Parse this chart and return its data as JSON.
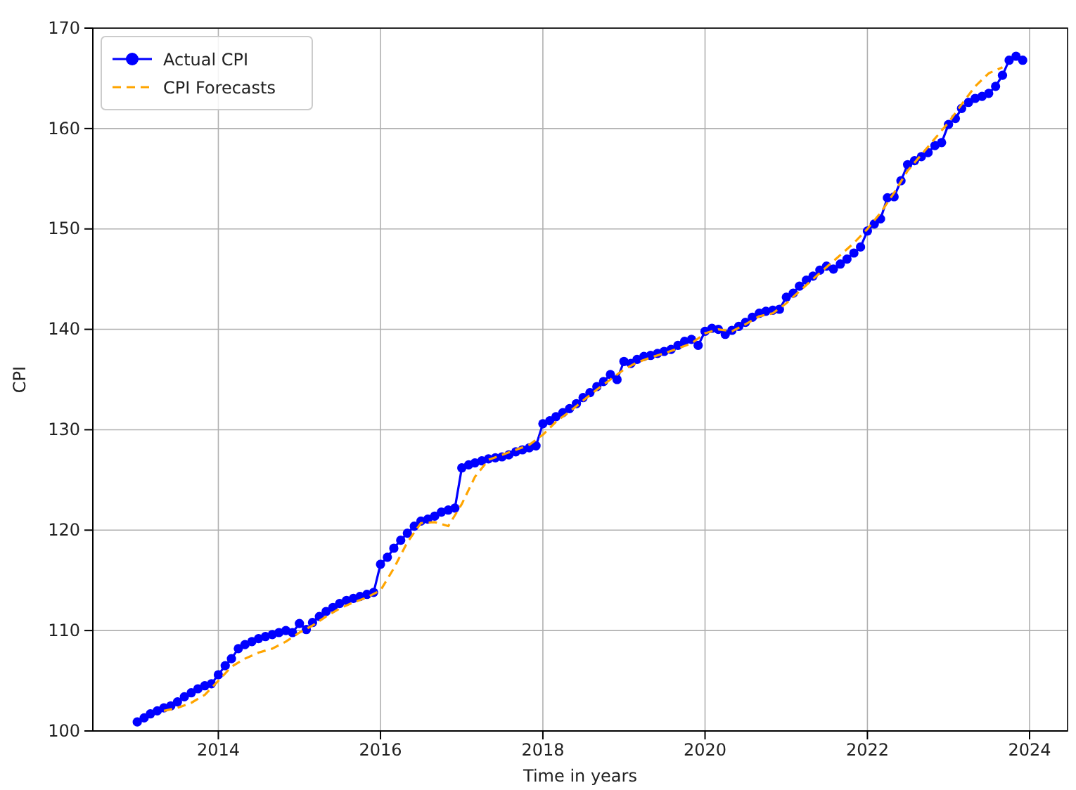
{
  "chart_data": {
    "type": "line",
    "xlabel": "Time in years",
    "ylabel": "CPI",
    "xlim": [
      "2012-06-15",
      "2024-06-20"
    ],
    "ylim": [
      100,
      170
    ],
    "xticks": [
      "2014",
      "2016",
      "2018",
      "2020",
      "2022",
      "2024"
    ],
    "yticks": [
      100,
      110,
      120,
      130,
      140,
      150,
      160,
      170
    ],
    "grid": true,
    "legend": "top left",
    "x": [
      "2013-01",
      "2013-02",
      "2013-03",
      "2013-04",
      "2013-05",
      "2013-06",
      "2013-07",
      "2013-08",
      "2013-09",
      "2013-10",
      "2013-11",
      "2013-12",
      "2014-01",
      "2014-02",
      "2014-03",
      "2014-04",
      "2014-05",
      "2014-06",
      "2014-07",
      "2014-08",
      "2014-09",
      "2014-10",
      "2014-11",
      "2014-12",
      "2015-01",
      "2015-02",
      "2015-03",
      "2015-04",
      "2015-05",
      "2015-06",
      "2015-07",
      "2015-08",
      "2015-09",
      "2015-10",
      "2015-11",
      "2015-12",
      "2016-01",
      "2016-02",
      "2016-03",
      "2016-04",
      "2016-05",
      "2016-06",
      "2016-07",
      "2016-08",
      "2016-09",
      "2016-10",
      "2016-11",
      "2016-12",
      "2017-01",
      "2017-02",
      "2017-03",
      "2017-04",
      "2017-05",
      "2017-06",
      "2017-07",
      "2017-08",
      "2017-09",
      "2017-10",
      "2017-11",
      "2017-12",
      "2018-01",
      "2018-02",
      "2018-03",
      "2018-04",
      "2018-05",
      "2018-06",
      "2018-07",
      "2018-08",
      "2018-09",
      "2018-10",
      "2018-11",
      "2018-12",
      "2019-01",
      "2019-02",
      "2019-03",
      "2019-04",
      "2019-05",
      "2019-06",
      "2019-07",
      "2019-08",
      "2019-09",
      "2019-10",
      "2019-11",
      "2019-12",
      "2020-01",
      "2020-02",
      "2020-03",
      "2020-04",
      "2020-05",
      "2020-06",
      "2020-07",
      "2020-08",
      "2020-09",
      "2020-10",
      "2020-11",
      "2020-12",
      "2021-01",
      "2021-02",
      "2021-03",
      "2021-04",
      "2021-05",
      "2021-06",
      "2021-07",
      "2021-08",
      "2021-09",
      "2021-10",
      "2021-11",
      "2021-12",
      "2022-01",
      "2022-02",
      "2022-03",
      "2022-04",
      "2022-05",
      "2022-06",
      "2022-07",
      "2022-08",
      "2022-09",
      "2022-10",
      "2022-11",
      "2022-12",
      "2023-01",
      "2023-02",
      "2023-03",
      "2023-04",
      "2023-05",
      "2023-06",
      "2023-07",
      "2023-08",
      "2023-09",
      "2023-10",
      "2023-11",
      "2023-12"
    ],
    "series": [
      {
        "name": "Actual CPI",
        "color": "#0000ff",
        "marker": "circle",
        "line_style": "solid",
        "values": [
          100.9,
          101.3,
          101.7,
          102.0,
          102.3,
          102.5,
          102.9,
          103.4,
          103.8,
          104.2,
          104.5,
          104.7,
          105.6,
          106.5,
          107.2,
          108.2,
          108.6,
          108.9,
          109.2,
          109.4,
          109.6,
          109.8,
          110.0,
          109.8,
          110.7,
          110.1,
          110.8,
          111.4,
          111.9,
          112.3,
          112.7,
          113.0,
          113.2,
          113.4,
          113.6,
          113.8,
          116.6,
          117.3,
          118.2,
          119.0,
          119.7,
          120.4,
          120.9,
          121.1,
          121.4,
          121.8,
          122.0,
          122.2,
          126.2,
          126.5,
          126.7,
          126.9,
          127.1,
          127.2,
          127.3,
          127.5,
          127.8,
          128.0,
          128.2,
          128.4,
          130.6,
          130.9,
          131.3,
          131.7,
          132.1,
          132.6,
          133.2,
          133.7,
          134.3,
          134.8,
          135.5,
          135.0,
          136.8,
          136.6,
          137.0,
          137.3,
          137.4,
          137.6,
          137.8,
          138.0,
          138.4,
          138.8,
          139.0,
          138.4,
          139.8,
          140.1,
          140.0,
          139.5,
          139.9,
          140.3,
          140.7,
          141.2,
          141.6,
          141.8,
          141.9,
          142.0,
          143.2,
          143.6,
          144.3,
          144.9,
          145.3,
          145.9,
          146.3,
          146.0,
          146.5,
          147.0,
          147.6,
          148.2,
          149.8,
          150.5,
          151.0,
          153.1,
          153.2,
          154.8,
          156.4,
          156.8,
          157.2,
          157.6,
          158.3,
          158.6,
          160.4,
          161.0,
          162.0,
          162.6,
          163.0,
          163.2,
          163.5,
          164.2,
          165.3,
          166.8,
          167.2,
          166.8
        ]
      },
      {
        "name": "CPI Forecasts",
        "color": "#ffa500",
        "marker": "none",
        "line_style": "dashed",
        "x": [
          "2013-05",
          "2013-07",
          "2013-09",
          "2013-11",
          "2014-01",
          "2014-03",
          "2014-05",
          "2014-07",
          "2014-09",
          "2014-11",
          "2015-01",
          "2015-03",
          "2015-05",
          "2015-07",
          "2015-09",
          "2015-11",
          "2016-01",
          "2016-03",
          "2016-05",
          "2016-07",
          "2016-09",
          "2016-11",
          "2017-01",
          "2017-03",
          "2017-05",
          "2017-07",
          "2017-09",
          "2017-11",
          "2018-01",
          "2018-03",
          "2018-05",
          "2018-07",
          "2018-09",
          "2018-11",
          "2019-01",
          "2019-03",
          "2019-05",
          "2019-07",
          "2019-09",
          "2019-11",
          "2020-01",
          "2020-03",
          "2020-05",
          "2020-07",
          "2020-09",
          "2020-11",
          "2021-01",
          "2021-03",
          "2021-05",
          "2021-07",
          "2021-09",
          "2021-11",
          "2022-01",
          "2022-03",
          "2022-05",
          "2022-07",
          "2022-09",
          "2022-11",
          "2023-01",
          "2023-03",
          "2023-05",
          "2023-07",
          "2023-09"
        ],
        "values": [
          102.0,
          102.3,
          102.8,
          103.6,
          105.0,
          106.4,
          107.2,
          107.8,
          108.2,
          108.9,
          109.8,
          110.5,
          111.4,
          112.2,
          112.8,
          113.3,
          114.0,
          116.2,
          118.8,
          120.7,
          120.8,
          120.4,
          122.6,
          125.3,
          127.0,
          127.5,
          128.0,
          128.5,
          129.5,
          130.8,
          131.8,
          132.9,
          134.0,
          135.0,
          136.0,
          136.7,
          137.2,
          137.6,
          138.1,
          138.6,
          139.6,
          140.0,
          139.8,
          140.5,
          141.3,
          141.6,
          142.6,
          143.8,
          145.0,
          146.2,
          147.4,
          148.6,
          150.0,
          151.6,
          153.6,
          155.8,
          157.4,
          159.0,
          160.6,
          162.4,
          164.2,
          165.5,
          166.1
        ]
      }
    ]
  }
}
